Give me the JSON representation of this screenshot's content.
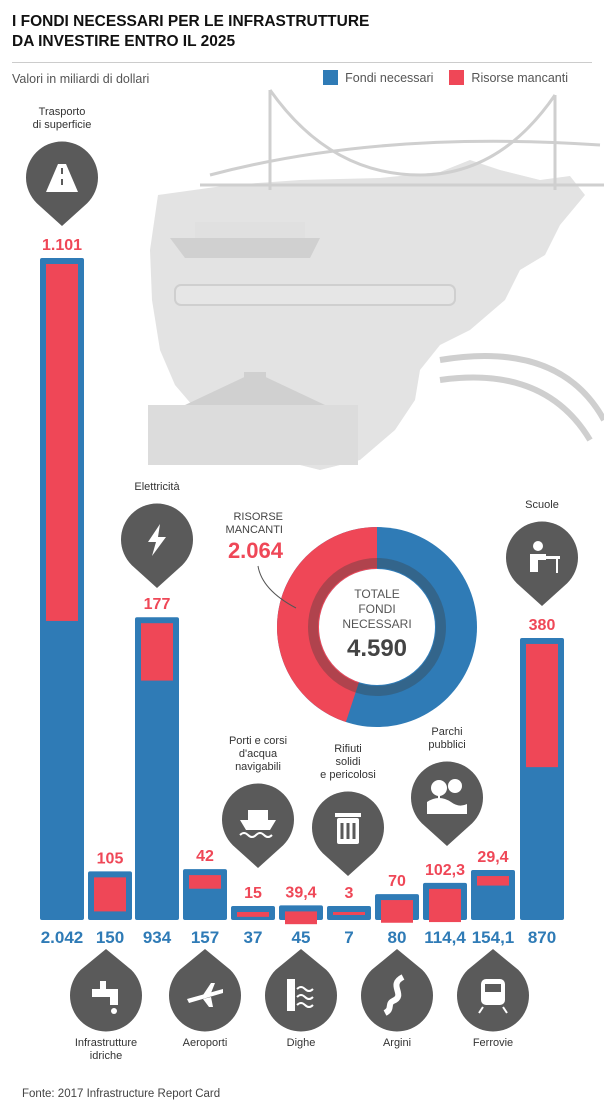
{
  "title_line1": "I FONDI NECESSARI PER LE INFRASTRUTTURE",
  "title_line2": "DA INVESTIRE ENTRO IL 2025",
  "subtitle": "Valori in miliardi di dollari",
  "legend": {
    "fondi": "Fondi necessari",
    "risorse": "Risorse mancanti"
  },
  "colors": {
    "fondi": "#2f7bb6",
    "risorse": "#ef4757",
    "icon": "#5a5a5a"
  },
  "source": "Fonte: 2017 Infrastructure Report Card",
  "donut": {
    "risorse_label1": "RISORSE",
    "risorse_label2": "MANCANTI",
    "risorse_value": "2.064",
    "totale1": "TOTALE",
    "totale2": "FONDI",
    "totale3": "NECESSARI",
    "totale_value": "4.590"
  },
  "chart_data": {
    "type": "bar",
    "categories": [
      "Trasporto di superficie",
      "Infrastrutture idriche",
      "Elettricità",
      "Aeroporti",
      "Dighe",
      "Porti e corsi d'acqua navigabili",
      "Rifiuti solidi e pericolosi",
      "Argini",
      "Parchi pubblici",
      "Ferrovie",
      "Scuole"
    ],
    "series": [
      {
        "name": "Fondi necessari",
        "values": [
          2042,
          150,
          934,
          157,
          37,
          45,
          7,
          80,
          114.4,
          154.1,
          870
        ]
      },
      {
        "name": "Risorse mancanti",
        "values": [
          1101,
          105,
          177,
          42,
          15,
          39.4,
          3,
          70,
          102.3,
          29.4,
          380
        ]
      }
    ],
    "value_labels_fondi": [
      "2.042",
      "150",
      "934",
      "157",
      "37",
      "45",
      "7",
      "80",
      "114,4",
      "154,1",
      "870"
    ],
    "value_labels_risorse": [
      "1.101",
      "105",
      "177",
      "42",
      "15",
      "39,4",
      "3",
      "70",
      "102,3",
      "29,4",
      "380"
    ],
    "total_fondi": 4590,
    "total_risorse": 2064
  },
  "bars": [
    {
      "label": [
        "Trasporto",
        "di superficie"
      ],
      "icon": "road-icon"
    },
    {
      "label": [
        "Infrastrutture",
        "idriche"
      ],
      "icon": "faucet-icon"
    },
    {
      "label": [
        "Elettricità"
      ],
      "icon": "lightning-icon"
    },
    {
      "label": [
        "Aeroporti"
      ],
      "icon": "airplane-icon"
    },
    {
      "label": [
        "Porti e corsi",
        "d'acqua",
        "navigabili"
      ],
      "icon": "ship-icon"
    },
    {
      "label": [
        "Dighe"
      ],
      "icon": "dam-icon"
    },
    {
      "label": [
        "Rifiuti",
        "solidi",
        "e pericolosi"
      ],
      "icon": "trash-icon"
    },
    {
      "label": [
        "Argini"
      ],
      "icon": "levee-icon"
    },
    {
      "label": [
        "Parchi",
        "pubblici"
      ],
      "icon": "park-icon"
    },
    {
      "label": [
        "Ferrovie"
      ],
      "icon": "train-icon"
    },
    {
      "label": [
        "Scuole"
      ],
      "icon": "school-icon"
    }
  ]
}
